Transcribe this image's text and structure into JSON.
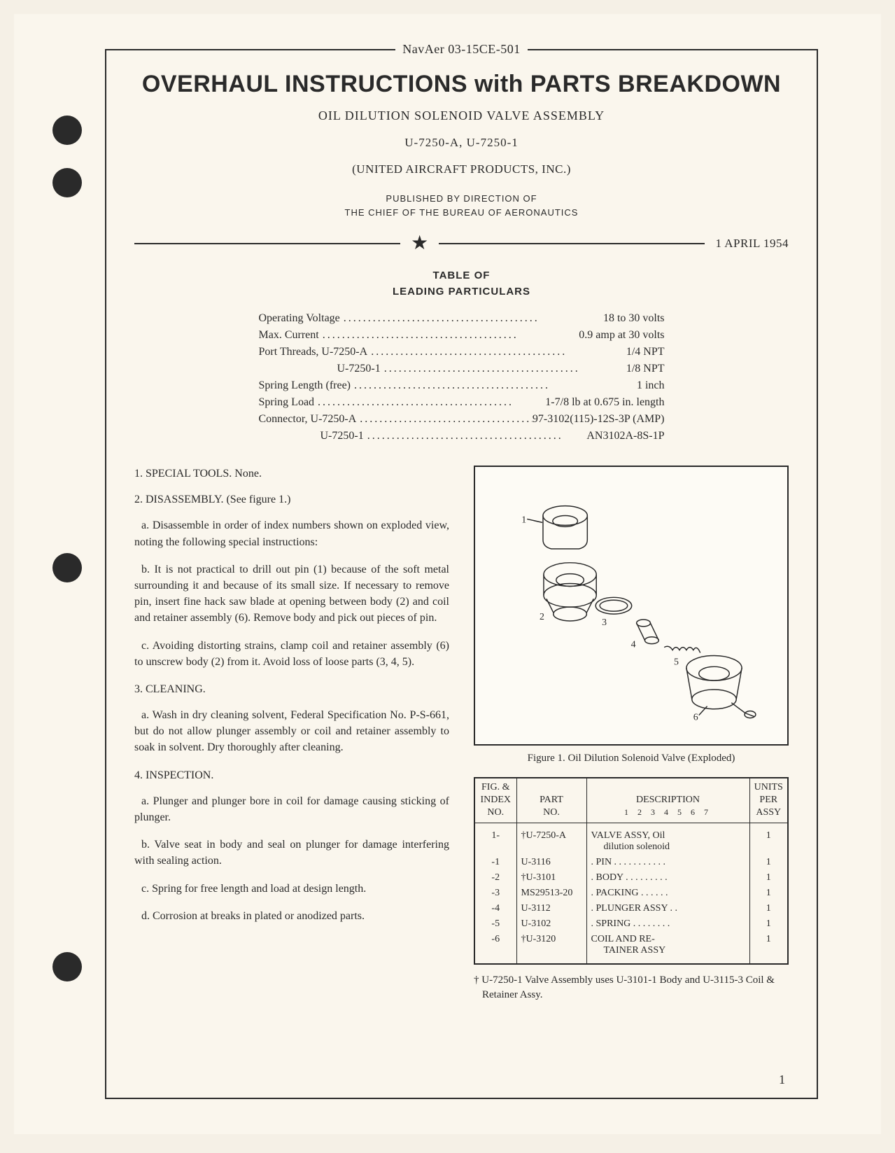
{
  "doc_id": "NavAer 03-15CE-501",
  "main_title": "OVERHAUL INSTRUCTIONS with PARTS BREAKDOWN",
  "subtitle": "OIL DILUTION SOLENOID VALVE ASSEMBLY",
  "model_numbers": "U-7250-A, U-7250-1",
  "manufacturer": "(UNITED AIRCRAFT PRODUCTS, INC.)",
  "published_line1": "PUBLISHED BY DIRECTION OF",
  "published_line2": "THE CHIEF OF THE BUREAU OF AERONAUTICS",
  "date": "1 APRIL 1954",
  "table_title_1": "TABLE OF",
  "table_title_2": "LEADING PARTICULARS",
  "particulars": [
    {
      "label": "Operating Voltage",
      "value": "18 to 30 volts",
      "indent": ""
    },
    {
      "label": "Max. Current",
      "value": "0.9 amp at 30 volts",
      "indent": ""
    },
    {
      "label": "Port Threads, U-7250-A",
      "value": "1/4 NPT",
      "indent": ""
    },
    {
      "label": "U-7250-1",
      "value": "1/8 NPT",
      "indent": "indent"
    },
    {
      "label": "Spring Length (free)",
      "value": "1 inch",
      "indent": ""
    },
    {
      "label": "Spring Load",
      "value": "1-7/8 lb at 0.675 in. length",
      "indent": ""
    },
    {
      "label": "Connector, U-7250-A",
      "value": "97-3102(115)-12S-3P (AMP)",
      "indent": ""
    },
    {
      "label": "U-7250-1",
      "value": "AN3102A-8S-1P",
      "indent": "indent2"
    }
  ],
  "body": {
    "s1": "1. SPECIAL TOOLS. None.",
    "s2": "2. DISASSEMBLY. (See figure 1.)",
    "s2a": "a. Disassemble in order of index numbers shown on exploded view, noting the following special instructions:",
    "s2b": "b. It is not practical to drill out pin (1) because of the soft metal surrounding it and because of its small size. If necessary to remove pin, insert fine hack saw blade at opening between body (2) and coil and retainer assembly (6). Remove body and pick out pieces of pin.",
    "s2c": "c. Avoiding distorting strains, clamp coil and retainer assembly (6) to unscrew body (2) from it. Avoid loss of loose parts (3, 4, 5).",
    "s3": "3. CLEANING.",
    "s3a": "a. Wash in dry cleaning solvent, Federal Specification No. P-S-661, but do not allow plunger assembly or coil and retainer assembly to soak in solvent. Dry thoroughly after cleaning.",
    "s4": "4. INSPECTION.",
    "s4a": "a. Plunger and plunger bore in coil for damage causing sticking of plunger.",
    "s4b": "b. Valve seat in body and seal on plunger for damage interfering with sealing action.",
    "s4c": "c. Spring for free length and load at design length.",
    "s4d": "d. Corrosion at breaks in plated or anodized parts."
  },
  "figure_caption": "Figure 1. Oil Dilution Solenoid Valve (Exploded)",
  "table_headers": {
    "col1_l1": "FIG. &",
    "col1_l2": "INDEX",
    "col1_l3": "NO.",
    "col2_l1": "PART",
    "col2_l2": "NO.",
    "col3_l1": "DESCRIPTION",
    "col3_sub": "1  2  3  4  5  6  7",
    "col4_l1": "UNITS",
    "col4_l2": "PER",
    "col4_l3": "ASSY"
  },
  "parts": [
    {
      "idx": "1-",
      "part": "†U-7250-A",
      "desc": "VALVE ASSY, Oil",
      "desc2": "dilution solenoid",
      "units": "1"
    },
    {
      "idx": "-1",
      "part": "U-3116",
      "desc": ".  PIN . . . . . . . . . . .",
      "units": "1"
    },
    {
      "idx": "-2",
      "part": "†U-3101",
      "desc": ".  BODY . . . . . . . . .",
      "units": "1"
    },
    {
      "idx": "-3",
      "part": "MS29513-20",
      "desc": ".  PACKING  . . . . . .",
      "units": "1"
    },
    {
      "idx": "-4",
      "part": "U-3112",
      "desc": ".  PLUNGER ASSY . .",
      "units": "1"
    },
    {
      "idx": "-5",
      "part": "U-3102",
      "desc": ".  SPRING . . . . . . . .",
      "units": "1"
    },
    {
      "idx": "-6",
      "part": "†U-3120",
      "desc": "  COIL AND RE-",
      "desc2": "TAINER ASSY",
      "units": "1"
    }
  ],
  "footnote": "† U-7250-1 Valve Assembly uses U-3101-1 Body and U-3115-3 Coil & Retainer Assy.",
  "page_number": "1",
  "colors": {
    "page_bg": "#faf6ed",
    "text": "#2a2a2a",
    "border": "#2a2a2a"
  }
}
